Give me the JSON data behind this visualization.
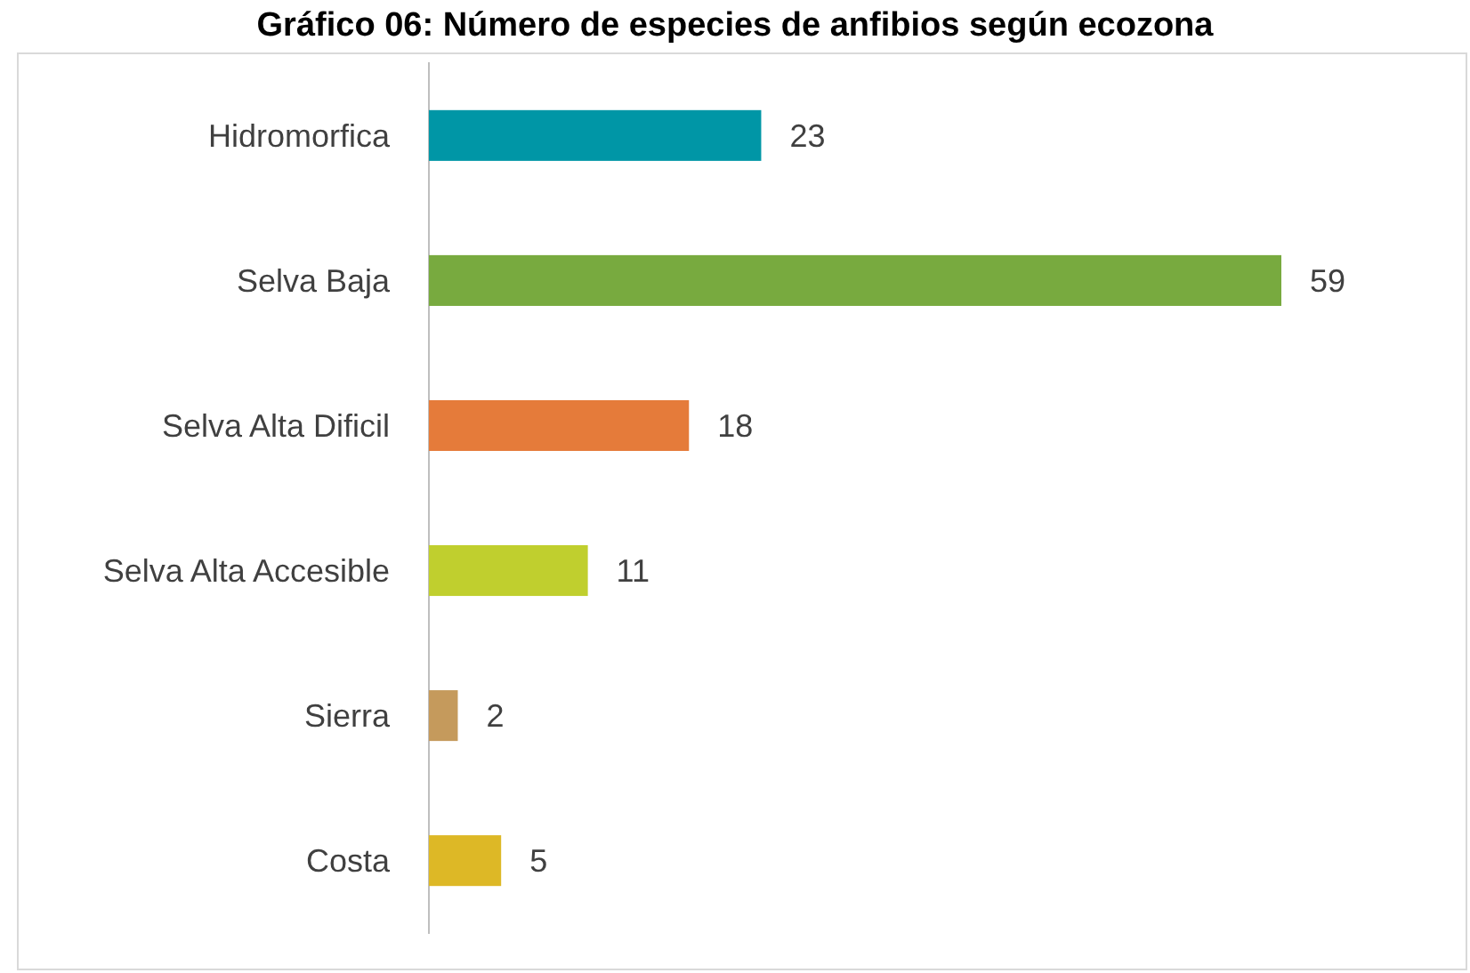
{
  "chart_data": {
    "type": "bar",
    "orientation": "horizontal",
    "title": "Gráfico 06: Número de especies de anfibios según ecozona",
    "categories": [
      "Hidromorfica",
      "Selva Baja",
      "Selva Alta Dificil",
      "Selva Alta Accesible",
      "Sierra",
      "Costa"
    ],
    "values": [
      23,
      59,
      18,
      11,
      2,
      5
    ],
    "colors": [
      "#0096a6",
      "#78aa3f",
      "#e57b3a",
      "#c0cf2e",
      "#c59a5c",
      "#ddb826"
    ],
    "data_labels": true
  }
}
